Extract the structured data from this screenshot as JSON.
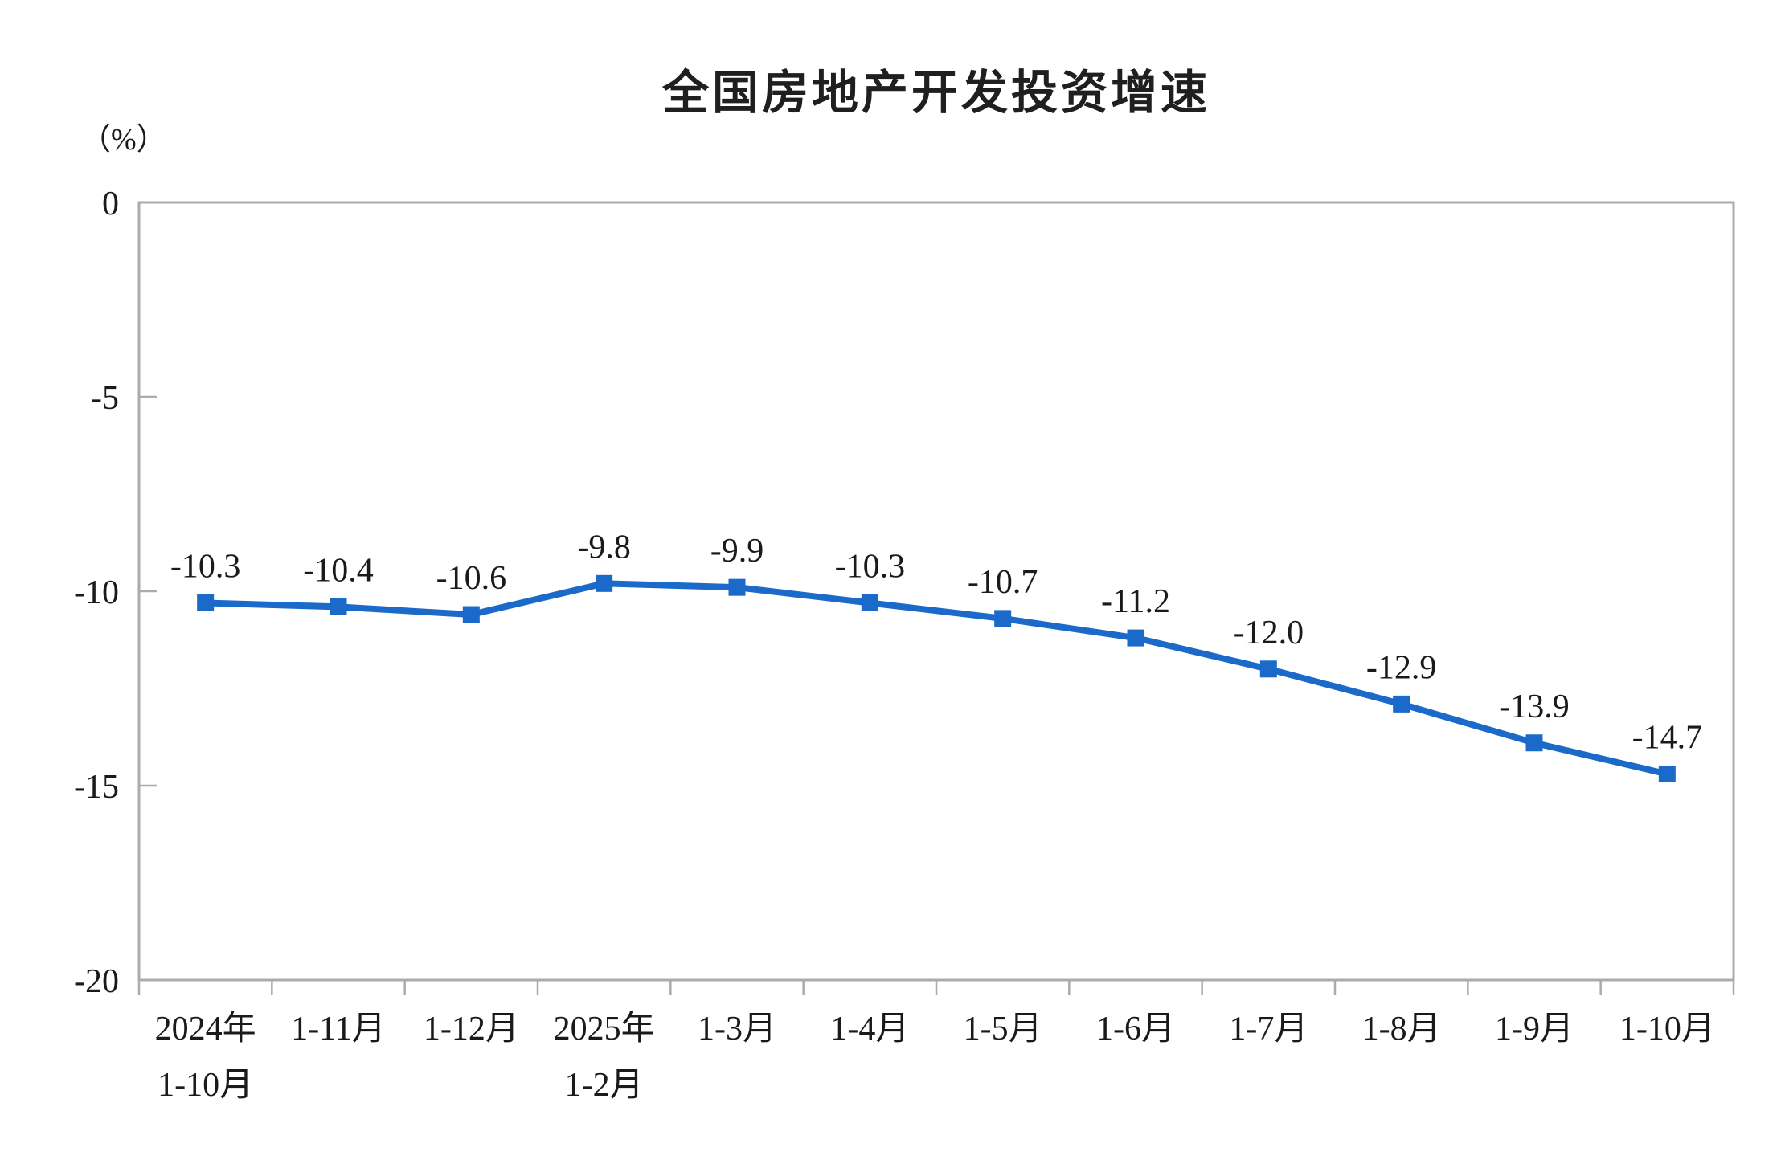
{
  "chart_data": {
    "type": "line",
    "title": "全国房地产开发投资增速",
    "unit_label": "（%）",
    "categories": [
      "2024年\n1-10月",
      "1-11月",
      "1-12月",
      "2025年\n1-2月",
      "1-3月",
      "1-4月",
      "1-5月",
      "1-6月",
      "1-7月",
      "1-8月",
      "1-9月",
      "1-10月"
    ],
    "series": [
      {
        "name": "全国房地产开发投资增速",
        "values": [
          -10.3,
          -10.4,
          -10.6,
          -9.8,
          -9.9,
          -10.3,
          -10.7,
          -11.2,
          -12.0,
          -12.9,
          -13.9,
          -14.7
        ]
      }
    ],
    "data_labels": [
      "-10.3",
      "-10.4",
      "-10.6",
      "-9.8",
      "-9.9",
      "-10.3",
      "-10.7",
      "-11.2",
      "-12.0",
      "-12.9",
      "-13.9",
      "-14.7"
    ],
    "xlabel": "",
    "ylabel": "（%）",
    "ylim": [
      -20,
      0
    ],
    "ytick_step": 5,
    "ytick_labels": [
      "0",
      "-5",
      "-10",
      "-15",
      "-20"
    ],
    "grid": false,
    "legend": "none",
    "marker": "square",
    "colors": {
      "line": "#1b6ac9",
      "marker": "#1b6ac9",
      "axis_border": "#ababab",
      "text": "#1a1a1a"
    }
  }
}
